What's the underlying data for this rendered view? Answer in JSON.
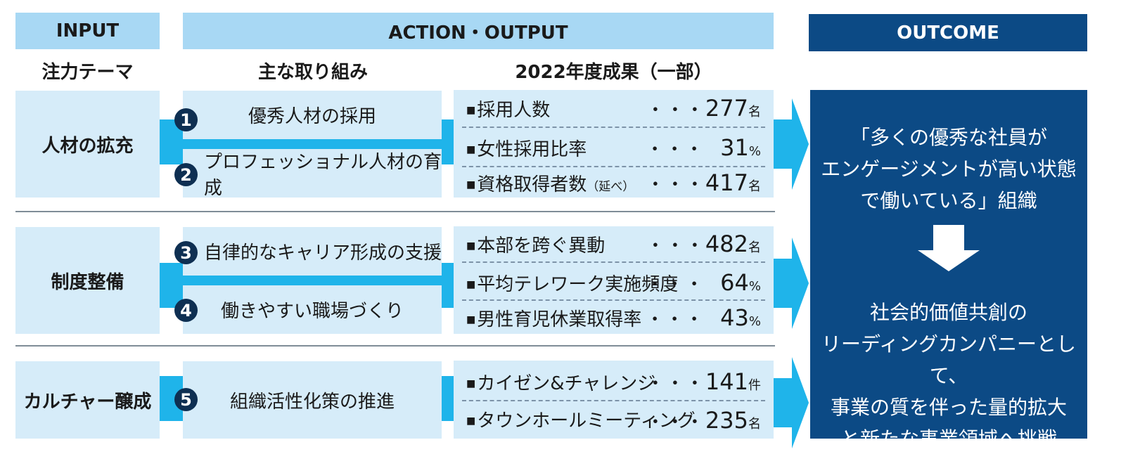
{
  "headers": {
    "input": "INPUT",
    "action": "ACTION・OUTPUT",
    "outcome": "OUTCOME"
  },
  "subheaders": {
    "theme": "注力テーマ",
    "initiatives": "主な取り組み",
    "results": "2022年度成果（一部）"
  },
  "themes": [
    "人材の拡充",
    "制度整備",
    "カルチャー醸成"
  ],
  "actions": [
    {
      "num": "1",
      "label": "優秀人材の採用"
    },
    {
      "num": "2",
      "label": "プロフェッショナル人材の育成"
    },
    {
      "num": "3",
      "label": "自律的なキャリア形成の支援"
    },
    {
      "num": "4",
      "label": "働きやすい職場づくり"
    },
    {
      "num": "5",
      "label": "組織活性化策の推進"
    }
  ],
  "results": [
    {
      "bullet": "■",
      "label": "採用人数",
      "note": "",
      "dots": "・・・",
      "value": "277",
      "unit": "名"
    },
    {
      "bullet": "■",
      "label": "女性採用比率",
      "note": "",
      "dots": "・・・",
      "value": "31",
      "unit": "%"
    },
    {
      "bullet": "■",
      "label": "資格取得者数",
      "note": "（延べ）",
      "dots": "・・・",
      "value": "417",
      "unit": "名"
    },
    {
      "bullet": "■",
      "label": "本部を跨ぐ異動",
      "note": "",
      "dots": "・・・",
      "value": "482",
      "unit": "名"
    },
    {
      "bullet": "■",
      "label": "平均テレワーク実施頻度",
      "note": "",
      "dots": "・・・",
      "value": "64",
      "unit": "%"
    },
    {
      "bullet": "■",
      "label": "男性育児休業取得率",
      "note": "",
      "dots": "・・・",
      "value": "43",
      "unit": "%"
    },
    {
      "bullet": "■",
      "label": "カイゼン&チャレンジ",
      "note": "",
      "dots": "・・・",
      "value": "141",
      "unit": "件"
    },
    {
      "bullet": "■",
      "label": "タウンホールミーティング",
      "note": "",
      "dots": "・・・",
      "value": "235",
      "unit": "名"
    }
  ],
  "outcome": {
    "top": [
      "「多くの優秀な社員が",
      "エンゲージメントが高い状態",
      "で働いている」組織"
    ],
    "bottom": [
      "社会的価値共創の",
      "リーディングカンパニーとして、",
      "事業の質を伴った量的拡大",
      "と新たな事業領域へ挑戦"
    ]
  },
  "colors": {
    "light": "#d6ecf9",
    "header": "#a8d8f4",
    "connector": "#1fb4ea",
    "outcome": "#0c4a85",
    "badge": "#0e2f52"
  }
}
